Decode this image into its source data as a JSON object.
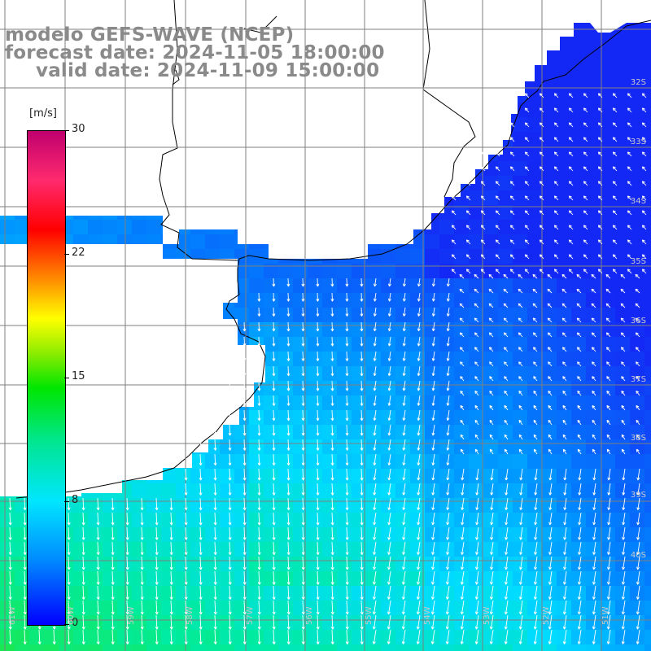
{
  "title": {
    "line1": "modelo GEFS-WAVE (NCEP)",
    "line2": "forecast date: 2024-11-05 18:00:00",
    "line3": "valid date: 2024-11-09 15:00:00"
  },
  "colorbar": {
    "unit": "[m/s]",
    "ticks": [
      "30",
      "22",
      "15",
      "8",
      "0"
    ],
    "colors": [
      "#0000ff",
      "#008cff",
      "#00e6ff",
      "#00e68c",
      "#00e600",
      "#ffff00",
      "#ff8c00",
      "#ff0000",
      "#c0006e"
    ]
  },
  "lat_labels": [
    "32S",
    "33S",
    "34S",
    "35S",
    "36S",
    "37S",
    "38S",
    "39S",
    "40S"
  ],
  "lon_labels": [
    "61W",
    "60W",
    "59W",
    "58W",
    "57W",
    "56W",
    "55W",
    "54W",
    "53W",
    "52W",
    "51W",
    "50W"
  ],
  "map_style": {
    "land_color": "#ffffff",
    "coast_color": "#000000",
    "grid_color": "#7f7f7f",
    "arrow_color": "#ffffff"
  }
}
